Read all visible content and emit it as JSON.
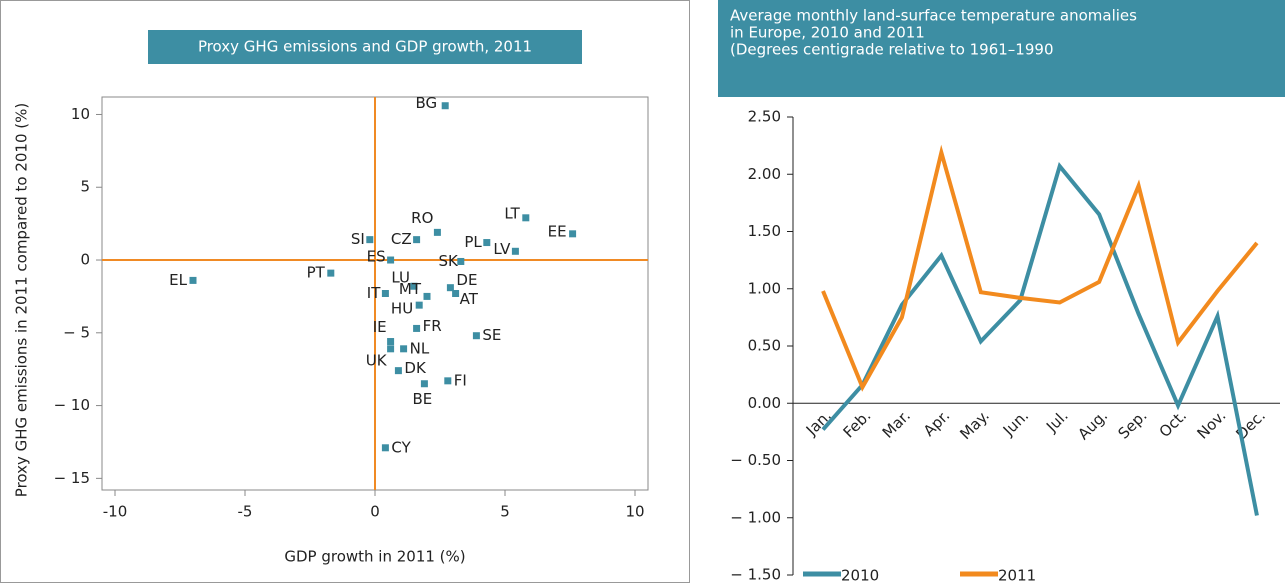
{
  "chart_data": [
    {
      "type": "scatter",
      "title": "Proxy GHG emissions and GDP growth, 2011",
      "x_label": "GDP growth in 2011 (%)",
      "y_label": "Proxy GHG emissions in 2011 compared to 2010  (%)",
      "color": "#3d8ea3",
      "zero_line_color": "#f08a24",
      "labels": [
        "BG",
        "RO",
        "LT",
        "EE",
        "SI",
        "CZ",
        "PL",
        "LV",
        "ES",
        "SK",
        "EL",
        "PT",
        "LU",
        "IT",
        "MT",
        "DE",
        "AT",
        "HU",
        "FR",
        "SE",
        "IE",
        "NL",
        "UK",
        "DK",
        "FI",
        "BE",
        "CY"
      ],
      "x": [
        2.7,
        2.4,
        5.8,
        7.6,
        -0.2,
        1.6,
        4.3,
        5.4,
        0.6,
        3.3,
        -7.0,
        -1.7,
        1.5,
        0.4,
        2.0,
        2.9,
        3.1,
        1.7,
        1.6,
        3.9,
        0.6,
        1.1,
        0.6,
        0.9,
        2.8,
        1.9,
        0.4
      ],
      "y": [
        10.6,
        1.9,
        2.9,
        1.8,
        1.4,
        1.4,
        1.2,
        0.6,
        0.0,
        -0.1,
        -1.4,
        -0.9,
        -1.8,
        -2.3,
        -2.5,
        -1.9,
        -2.3,
        -3.1,
        -4.7,
        -5.2,
        -5.6,
        -6.1,
        -6.1,
        -7.6,
        -8.3,
        -8.5,
        -12.9
      ],
      "xlim": [
        -10.5,
        10.5
      ],
      "xticks": [
        -10,
        -5,
        0,
        5,
        10
      ],
      "ylim": [
        -15.8,
        11.2
      ],
      "yticks": [
        10,
        5,
        0,
        {
          "value": -5,
          "label": "− 5"
        },
        {
          "value": -10,
          "label": "− 10"
        },
        {
          "value": -15,
          "label": "− 15"
        }
      ]
    },
    {
      "type": "line",
      "title": [
        "Average monthly land-surface temperature anomalies",
        "in Europe, 2010 and 2011",
        "(Degrees centigrade relative to 1961–1990"
      ],
      "categories": [
        "Jan.",
        "Feb.",
        "Mar.",
        "Apr.",
        "May.",
        "Jun.",
        "Jul.",
        "Aug.",
        "Sep.",
        "Oct.",
        "Nov.",
        "Dec."
      ],
      "series": [
        {
          "name": "2010",
          "color": "#3d8ea3",
          "values": [
            -0.23,
            0.16,
            0.86,
            1.29,
            0.54,
            0.9,
            2.07,
            1.65,
            0.78,
            -0.02,
            0.76,
            -0.98
          ]
        },
        {
          "name": "2011",
          "color": "#f28a1e",
          "values": [
            0.98,
            0.14,
            0.75,
            2.19,
            0.97,
            0.92,
            0.88,
            1.06,
            1.9,
            0.53,
            0.98,
            1.4
          ]
        }
      ],
      "ylim": [
        -1.5,
        2.5
      ],
      "yticks": [
        {
          "value": 2.5,
          "label": "2.50"
        },
        {
          "value": 2,
          "label": "2.00"
        },
        {
          "value": 1.5,
          "label": "1.50"
        },
        {
          "value": 1,
          "label": "1.00"
        },
        {
          "value": 0.5,
          "label": "0.50"
        },
        {
          "value": 0,
          "label": "0.00"
        },
        {
          "value": -0.5,
          "label": "− 0.50"
        },
        {
          "value": -1,
          "label": "− 1.00"
        },
        {
          "value": -1.5,
          "label": "− 1.50"
        }
      ]
    }
  ]
}
